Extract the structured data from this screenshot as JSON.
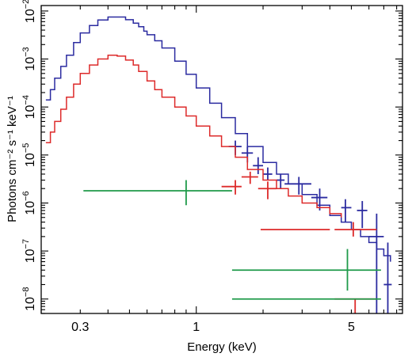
{
  "chart_data": {
    "type": "line",
    "title": "",
    "xlabel": "Energy (keV)",
    "ylabel": "Photons cm⁻² s⁻¹ keV⁻¹",
    "x_scale": "log",
    "y_scale": "log",
    "xlim": [
      0.2,
      8.5
    ],
    "ylim": [
      5e-09,
      0.013
    ],
    "grid": false,
    "x_ticks": [
      {
        "value": 0.3,
        "label": "0.3"
      },
      {
        "value": 1,
        "label": "1"
      },
      {
        "value": 5,
        "label": "5"
      }
    ],
    "y_ticks": [
      {
        "value": 1e-08,
        "base": "10",
        "exp": "−8"
      },
      {
        "value": 1e-07,
        "base": "10",
        "exp": "−7"
      },
      {
        "value": 1e-06,
        "base": "10",
        "exp": "−6"
      },
      {
        "value": 1e-05,
        "base": "10",
        "exp": "−5"
      },
      {
        "value": 0.0001,
        "base": "10",
        "exp": "−4"
      },
      {
        "value": 0.001,
        "base": "10",
        "exp": "−3"
      },
      {
        "value": 0.01,
        "base": "10",
        "exp": "−2"
      }
    ],
    "series": [
      {
        "color": "#2b2ba0",
        "model": [
          [
            0.21,
            0.00014
          ],
          [
            0.22,
            0.00023
          ],
          [
            0.23,
            0.0004
          ],
          [
            0.245,
            0.0007
          ],
          [
            0.26,
            0.0012
          ],
          [
            0.28,
            0.0022
          ],
          [
            0.3,
            0.0035
          ],
          [
            0.33,
            0.005
          ],
          [
            0.36,
            0.0065
          ],
          [
            0.4,
            0.0075
          ],
          [
            0.44,
            0.0075
          ],
          [
            0.48,
            0.0066
          ],
          [
            0.52,
            0.0056
          ],
          [
            0.55,
            0.0047
          ],
          [
            0.58,
            0.0038
          ],
          [
            0.6,
            0.0032
          ],
          [
            0.65,
            0.0024
          ],
          [
            0.7,
            0.0017
          ],
          [
            0.8,
            0.0009
          ],
          [
            0.9,
            0.00048
          ],
          [
            1.0,
            0.00025
          ],
          [
            1.15,
            0.00012
          ],
          [
            1.3,
            6e-05
          ],
          [
            1.5,
            2.8e-05
          ],
          [
            1.7,
            1.5e-05
          ],
          [
            2.0,
            7e-06
          ],
          [
            2.3,
            4e-06
          ],
          [
            2.6,
            2.5e-06
          ],
          [
            3.0,
            1.5e-06
          ],
          [
            3.5,
            9e-07
          ],
          [
            4.0,
            5.5e-07
          ],
          [
            4.5,
            4e-07
          ],
          [
            5.0,
            2.8e-07
          ],
          [
            5.5,
            2e-07
          ],
          [
            6.0,
            1.5e-07
          ],
          [
            6.5,
            1.1e-07
          ],
          [
            7.0,
            8e-08
          ],
          [
            7.5,
            6e-08
          ]
        ],
        "points": [
          [
            1.5,
            1.5e-05,
            1.4,
            1.6,
            1e-05,
            2e-05
          ],
          [
            1.7,
            1.1e-05,
            1.6,
            1.8,
            7e-06,
            1.5e-05
          ],
          [
            1.9,
            6e-06,
            1.8,
            2.0,
            4e-06,
            9e-06
          ],
          [
            2.1,
            4e-06,
            2.0,
            2.2,
            3e-06,
            5.5e-06
          ],
          [
            2.4,
            3e-06,
            2.3,
            2.5,
            2e-06,
            4e-06
          ],
          [
            2.9,
            2.5e-06,
            2.5,
            3.3,
            1.5e-06,
            3.5e-06
          ],
          [
            3.6,
            1.3e-06,
            3.3,
            3.9,
            7e-07,
            2e-06
          ],
          [
            4.7,
            8e-07,
            4.5,
            5.0,
            4e-07,
            1.2e-06
          ],
          [
            5.6,
            7e-07,
            5.3,
            5.9,
            3e-07,
            1.1e-06
          ],
          [
            6.5,
            2e-07,
            6.0,
            7.0,
            5e-09,
            6e-07
          ],
          [
            7.3,
            2e-08,
            7.0,
            7.6,
            5e-09,
            1.5e-07
          ]
        ]
      },
      {
        "color": "#dd2a2a",
        "model": [
          [
            0.21,
            1.8e-05
          ],
          [
            0.22,
            3e-05
          ],
          [
            0.23,
            5e-05
          ],
          [
            0.245,
            9e-05
          ],
          [
            0.26,
            0.00016
          ],
          [
            0.28,
            0.0003
          ],
          [
            0.3,
            0.0005
          ],
          [
            0.33,
            0.00075
          ],
          [
            0.36,
            0.001
          ],
          [
            0.4,
            0.0012
          ],
          [
            0.44,
            0.00115
          ],
          [
            0.48,
            0.00095
          ],
          [
            0.52,
            0.00075
          ],
          [
            0.55,
            0.00055
          ],
          [
            0.6,
            0.00035
          ],
          [
            0.65,
            0.00023
          ],
          [
            0.7,
            0.00016
          ],
          [
            0.8,
            0.0001
          ],
          [
            0.9,
            6.5e-05
          ],
          [
            1.0,
            4e-05
          ],
          [
            1.15,
            2.5e-05
          ],
          [
            1.3,
            1.5e-05
          ],
          [
            1.5,
            9e-06
          ],
          [
            1.7,
            5e-06
          ],
          [
            2.0,
            3e-06
          ],
          [
            2.3,
            2e-06
          ],
          [
            2.6,
            1.4e-06
          ],
          [
            3.0,
            1e-06
          ],
          [
            3.5,
            8e-07
          ],
          [
            4.0,
            6e-07
          ],
          [
            4.5,
            5e-07
          ]
        ],
        "points": [
          [
            1.5,
            2.2e-06,
            1.3,
            1.6,
            1.5e-06,
            3e-06
          ],
          [
            1.75,
            3.5e-06,
            1.6,
            1.9,
            2.5e-06,
            4.5e-06
          ],
          [
            2.1,
            2e-06,
            1.9,
            2.3,
            1.2e-06,
            2.8e-06
          ],
          [
            3.0,
            2.8e-07,
            1.95,
            4.0,
            2.8e-07,
            2.8e-07
          ],
          [
            5.1,
            2.8e-07,
            4.2,
            6.5,
            2e-07,
            4e-07
          ],
          [
            5.2,
            1e-08,
            4.2,
            6.5,
            5e-09,
            1e-08
          ]
        ]
      },
      {
        "color": "#1f9a4a",
        "model": [],
        "points": [
          [
            0.9,
            1.8e-06,
            0.31,
            1.45,
            9e-07,
            3e-06
          ],
          [
            4.8,
            4e-08,
            1.45,
            6.8,
            1.5e-08,
            1.1e-07
          ],
          [
            4.8,
            1e-08,
            1.45,
            6.8,
            1e-08,
            1e-08
          ]
        ]
      }
    ]
  }
}
